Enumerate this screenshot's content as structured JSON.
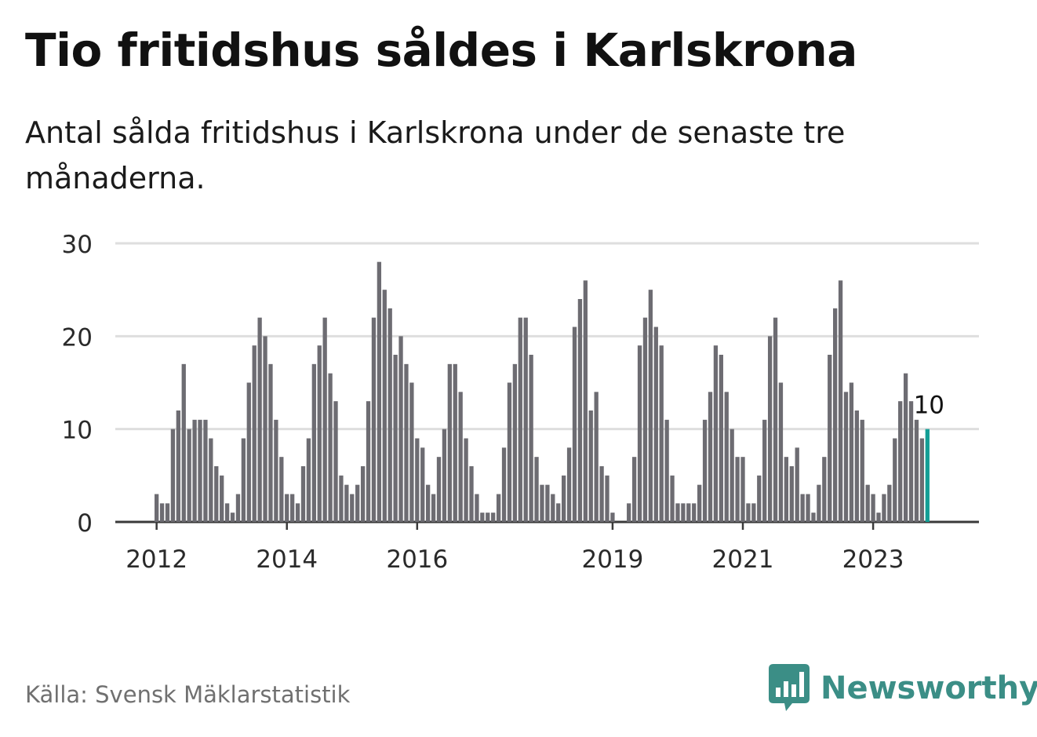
{
  "title": "Tio fritidshus såldes i Karlskrona",
  "subtitle": "Antal sålda fritidshus i Karlskrona under de senaste tre månaderna.",
  "source": "Källa: Svensk Mäklarstatistik",
  "brand": {
    "name": "Newsworthy",
    "icon": "newsworthy-logo-icon"
  },
  "colors": {
    "bar": "#6d6c72",
    "highlight": "#139e95",
    "grid": "#dedede",
    "axis": "#3a3a3a",
    "brand": "#3b8e86"
  },
  "chart_data": {
    "type": "bar",
    "ylim": [
      0,
      30
    ],
    "yticks": [
      0,
      10,
      20,
      30
    ],
    "xtick_labels": [
      {
        "label": "2012",
        "index": 0
      },
      {
        "label": "2014",
        "index": 24
      },
      {
        "label": "2016",
        "index": 48
      },
      {
        "label": "2019",
        "index": 84
      },
      {
        "label": "2021",
        "index": 108
      },
      {
        "label": "2023",
        "index": 132
      }
    ],
    "grid": true,
    "values": [
      3,
      2,
      2,
      10,
      12,
      17,
      10,
      11,
      11,
      11,
      9,
      6,
      5,
      2,
      1,
      3,
      9,
      15,
      19,
      22,
      20,
      17,
      11,
      7,
      3,
      3,
      2,
      6,
      9,
      17,
      19,
      22,
      16,
      13,
      5,
      4,
      3,
      4,
      6,
      13,
      22,
      28,
      25,
      23,
      18,
      20,
      17,
      15,
      9,
      8,
      4,
      3,
      7,
      10,
      17,
      17,
      14,
      9,
      6,
      3,
      1,
      1,
      1,
      3,
      8,
      15,
      17,
      22,
      22,
      18,
      7,
      4,
      4,
      3,
      2,
      5,
      8,
      21,
      24,
      26,
      12,
      14,
      6,
      5,
      1,
      0,
      0,
      2,
      7,
      19,
      22,
      25,
      21,
      19,
      11,
      5,
      2,
      2,
      2,
      2,
      4,
      11,
      14,
      19,
      18,
      14,
      10,
      7,
      7,
      2,
      2,
      5,
      11,
      20,
      22,
      15,
      7,
      6,
      8,
      3,
      3,
      1,
      4,
      7,
      18,
      23,
      26,
      14,
      15,
      12,
      11,
      4,
      3,
      1,
      3,
      4,
      9,
      13,
      16,
      13,
      11,
      9,
      10
    ],
    "highlight_last": true,
    "last_value_label": "10"
  }
}
